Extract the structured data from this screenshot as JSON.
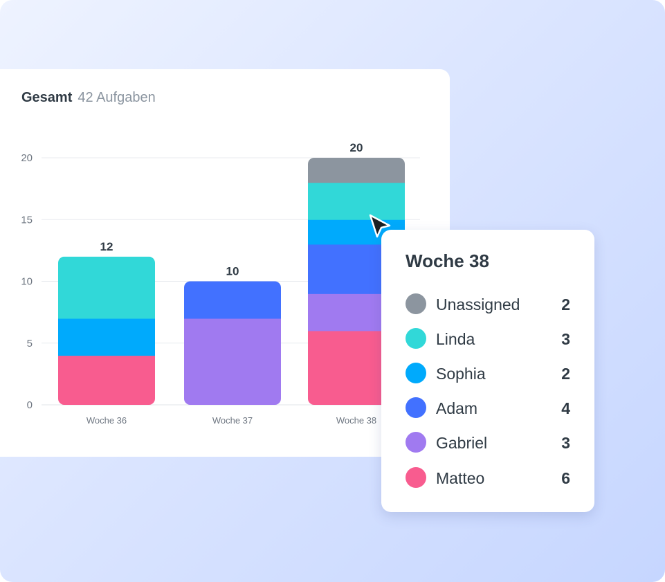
{
  "header": {
    "title": "Gesamt",
    "subtitle": "42 Aufgaben"
  },
  "chart_data": {
    "type": "bar",
    "stacked": true,
    "categories": [
      "Woche 36",
      "Woche 37",
      "Woche 38"
    ],
    "ylim": [
      0,
      20
    ],
    "yticks": [
      0,
      5,
      10,
      15,
      20
    ],
    "grid": true,
    "totals": [
      12,
      10,
      20
    ],
    "series": [
      {
        "name": "Matteo",
        "color": "#f85c8f",
        "values": [
          4,
          0,
          6
        ]
      },
      {
        "name": "Gabriel",
        "color": "#a07af0",
        "values": [
          0,
          7,
          3
        ]
      },
      {
        "name": "Adam",
        "color": "#4271ff",
        "values": [
          0,
          3,
          4
        ]
      },
      {
        "name": "Sophia",
        "color": "#00aafc",
        "values": [
          3,
          0,
          2
        ]
      },
      {
        "name": "Linda",
        "color": "#31d8d8",
        "values": [
          5,
          0,
          3
        ]
      },
      {
        "name": "Unassigned",
        "color": "#8c959f",
        "values": [
          0,
          0,
          2
        ]
      }
    ]
  },
  "tooltip": {
    "title": "Woche 38",
    "rows": [
      {
        "name": "Unassigned",
        "value": "2",
        "color": "#8c959f"
      },
      {
        "name": "Linda",
        "value": "3",
        "color": "#31d8d8"
      },
      {
        "name": "Sophia",
        "value": "2",
        "color": "#00aafc"
      },
      {
        "name": "Adam",
        "value": "4",
        "color": "#4271ff"
      },
      {
        "name": "Gabriel",
        "value": "3",
        "color": "#a07af0"
      },
      {
        "name": "Matteo",
        "value": "6",
        "color": "#f85c8f"
      }
    ]
  }
}
